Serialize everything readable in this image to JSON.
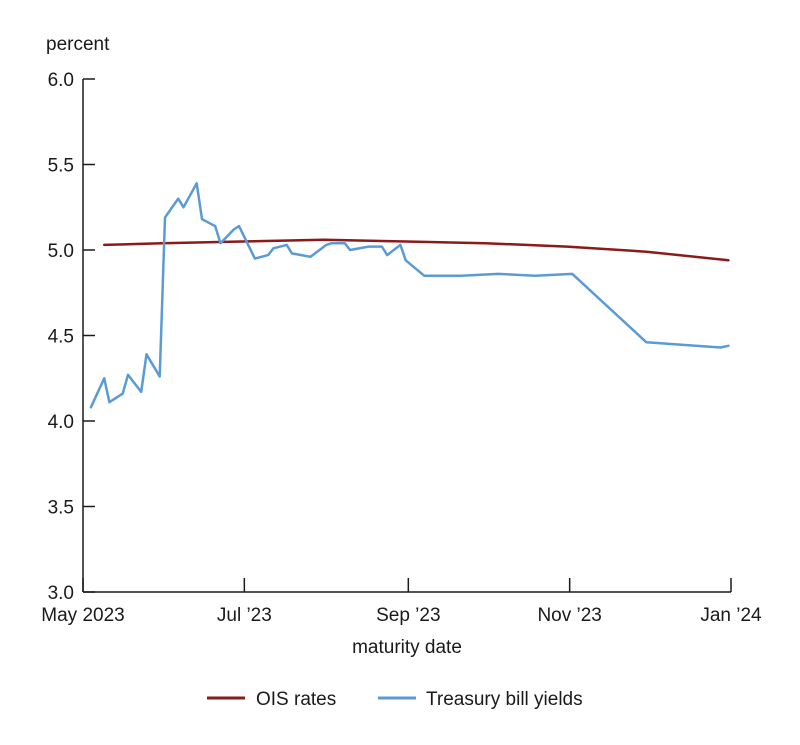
{
  "chart_data": {
    "type": "line",
    "ylabel": "percent",
    "xlabel": "maturity date",
    "ylim": [
      3.0,
      6.0
    ],
    "y_ticks": [
      "3.0",
      "3.5",
      "4.0",
      "4.5",
      "5.0",
      "5.5",
      "6.0"
    ],
    "x_ticks": [
      {
        "label": "May 2023",
        "date": "2023-05-01"
      },
      {
        "label": "Jul ’23",
        "date": "2023-07-01"
      },
      {
        "label": "Sep ’23",
        "date": "2023-09-01"
      },
      {
        "label": "Nov ’23",
        "date": "2023-11-01"
      },
      {
        "label": "Jan ’24",
        "date": "2024-01-01"
      }
    ],
    "xlim": [
      "2023-05-01",
      "2024-01-01"
    ],
    "grid": false,
    "legend_position": "bottom-center",
    "series": [
      {
        "name": "OIS rates",
        "color": "#8b1a1a",
        "points": [
          [
            "2023-05-09",
            5.03
          ],
          [
            "2023-05-31",
            5.04
          ],
          [
            "2023-06-30",
            5.05
          ],
          [
            "2023-07-31",
            5.06
          ],
          [
            "2023-08-31",
            5.05
          ],
          [
            "2023-09-30",
            5.04
          ],
          [
            "2023-10-31",
            5.02
          ],
          [
            "2023-11-30",
            4.99
          ],
          [
            "2023-12-31",
            4.94
          ]
        ]
      },
      {
        "name": "Treasury bill yields",
        "color": "#5b9bd5",
        "points": [
          [
            "2023-05-04",
            4.08
          ],
          [
            "2023-05-09",
            4.25
          ],
          [
            "2023-05-11",
            4.11
          ],
          [
            "2023-05-16",
            4.16
          ],
          [
            "2023-05-18",
            4.27
          ],
          [
            "2023-05-23",
            4.17
          ],
          [
            "2023-05-25",
            4.39
          ],
          [
            "2023-05-30",
            4.26
          ],
          [
            "2023-06-01",
            5.19
          ],
          [
            "2023-06-06",
            5.3
          ],
          [
            "2023-06-08",
            5.25
          ],
          [
            "2023-06-13",
            5.39
          ],
          [
            "2023-06-15",
            5.18
          ],
          [
            "2023-06-20",
            5.14
          ],
          [
            "2023-06-22",
            5.04
          ],
          [
            "2023-06-27",
            5.12
          ],
          [
            "2023-06-29",
            5.14
          ],
          [
            "2023-07-05",
            4.95
          ],
          [
            "2023-07-10",
            4.97
          ],
          [
            "2023-07-12",
            5.01
          ],
          [
            "2023-07-17",
            5.03
          ],
          [
            "2023-07-19",
            4.98
          ],
          [
            "2023-07-26",
            4.96
          ],
          [
            "2023-08-01",
            5.03
          ],
          [
            "2023-08-03",
            5.04
          ],
          [
            "2023-08-08",
            5.04
          ],
          [
            "2023-08-10",
            5.0
          ],
          [
            "2023-08-17",
            5.02
          ],
          [
            "2023-08-22",
            5.02
          ],
          [
            "2023-08-24",
            4.97
          ],
          [
            "2023-08-29",
            5.03
          ],
          [
            "2023-08-31",
            4.94
          ],
          [
            "2023-09-07",
            4.85
          ],
          [
            "2023-09-21",
            4.85
          ],
          [
            "2023-10-05",
            4.86
          ],
          [
            "2023-10-19",
            4.85
          ],
          [
            "2023-11-02",
            4.86
          ],
          [
            "2023-11-30",
            4.46
          ],
          [
            "2023-12-28",
            4.43
          ],
          [
            "2023-12-31",
            4.44
          ]
        ]
      }
    ]
  }
}
